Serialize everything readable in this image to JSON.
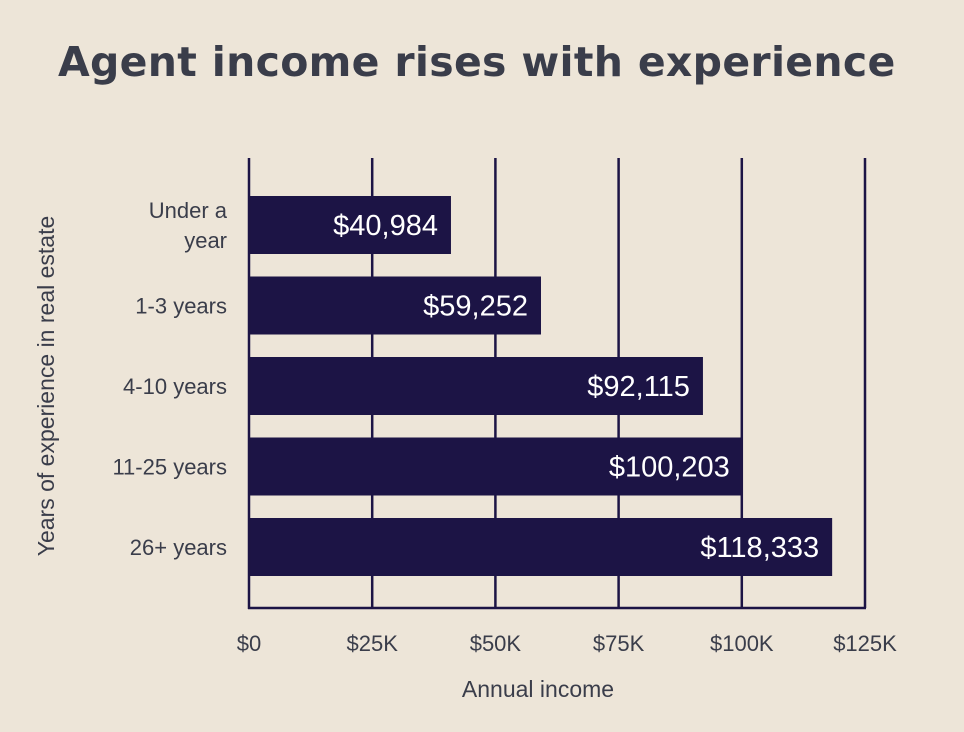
{
  "chart_data": {
    "type": "bar",
    "orientation": "horizontal",
    "title": "Agent income rises with experience",
    "xlabel": "Annual income",
    "ylabel": "Years of experience in real estate",
    "categories": [
      [
        "Under a",
        "year"
      ],
      [
        "1-3 years"
      ],
      [
        "4-10 years"
      ],
      [
        "11-25 years"
      ],
      [
        "26+ years"
      ]
    ],
    "values": [
      40984,
      59252,
      92115,
      100203,
      118333
    ],
    "data_labels": [
      "$40,984",
      "$59,252",
      "$92,115",
      "$100,203",
      "$118,333"
    ],
    "xlim": [
      0,
      125000
    ],
    "xticks": [
      0,
      25000,
      50000,
      75000,
      100000,
      125000
    ],
    "xtick_labels": [
      "$0",
      "$25K",
      "$50K",
      "$75K",
      "$100K",
      "$125K"
    ],
    "grid": true,
    "legend": "none",
    "colors": {
      "bar": "#1c1445",
      "grid": "#1c1445",
      "background": "#ede5d8",
      "text": "#3a3d4a",
      "data_label": "#ffffff"
    }
  }
}
